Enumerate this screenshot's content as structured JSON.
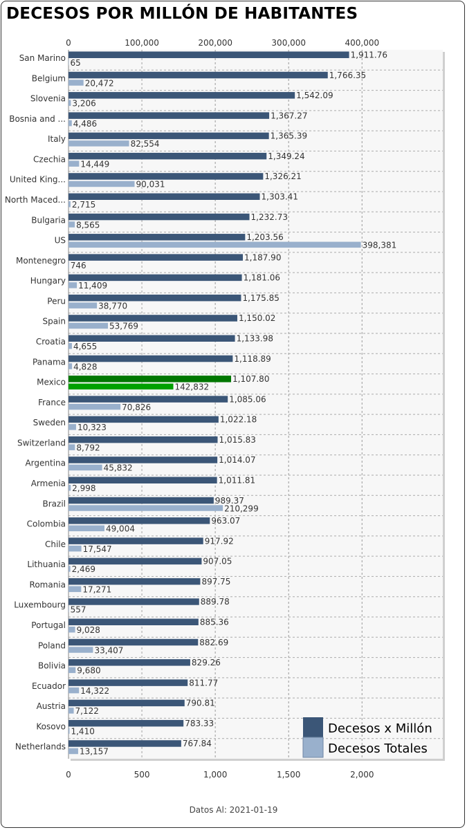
{
  "title": "DECESOS POR MILLÓN DE HABITANTES",
  "footer": "Datos Al: 2021-01-19",
  "colors": {
    "per_million": "#3b5677",
    "totals": "#99b0cc",
    "highlight_per_million": "#007700",
    "highlight_totals": "#00a000",
    "plot_background": "#f7f7f7",
    "grid": "#aaaaaa"
  },
  "chart_data": {
    "type": "bar",
    "orientation": "horizontal",
    "highlight_category": "Mexico",
    "categories": [
      "San Marino",
      "Belgium",
      "Slovenia",
      "Bosnia and ...",
      "Italy",
      "Czechia",
      "United King...",
      "North Maced...",
      "Bulgaria",
      "US",
      "Montenegro",
      "Hungary",
      "Peru",
      "Spain",
      "Croatia",
      "Panama",
      "Mexico",
      "France",
      "Sweden",
      "Switzerland",
      "Argentina",
      "Armenia",
      "Brazil",
      "Colombia",
      "Chile",
      "Lithuania",
      "Romania",
      "Luxembourg",
      "Portugal",
      "Poland",
      "Bolivia",
      "Ecuador",
      "Austria",
      "Kosovo",
      "Netherlands"
    ],
    "series": [
      {
        "name": "Decesos x Millón",
        "axis": "bottom",
        "values": [
          1911.76,
          1766.35,
          1542.09,
          1367.27,
          1365.39,
          1349.24,
          1326.21,
          1303.41,
          1232.73,
          1203.56,
          1187.9,
          1181.06,
          1175.85,
          1150.02,
          1133.98,
          1118.89,
          1107.8,
          1085.06,
          1022.18,
          1015.83,
          1014.07,
          1011.81,
          989.37,
          963.07,
          917.92,
          907.05,
          897.75,
          889.78,
          885.36,
          882.69,
          829.26,
          811.77,
          790.81,
          783.33,
          767.84
        ],
        "labels": [
          "1,911.76",
          "1,766.35",
          "1,542.09",
          "1,367.27",
          "1,365.39",
          "1,349.24",
          "1,326.21",
          "1,303.41",
          "1,232.73",
          "1,203.56",
          "1,187.90",
          "1,181.06",
          "1,175.85",
          "1,150.02",
          "1,133.98",
          "1,118.89",
          "1,107.80",
          "1,085.06",
          "1,022.18",
          "1,015.83",
          "1,014.07",
          "1,011.81",
          "989.37",
          "963.07",
          "917.92",
          "907.05",
          "897.75",
          "889.78",
          "885.36",
          "882.69",
          "829.26",
          "811.77",
          "790.81",
          "783.33",
          "767.84"
        ]
      },
      {
        "name": "Decesos Totales",
        "axis": "top",
        "values": [
          65,
          20472,
          3206,
          4486,
          82554,
          14449,
          90031,
          2715,
          8565,
          398381,
          746,
          11409,
          38770,
          53769,
          4655,
          4828,
          142832,
          70826,
          10323,
          8792,
          45832,
          2998,
          210299,
          49004,
          17547,
          2469,
          17271,
          557,
          9028,
          33407,
          9680,
          14322,
          7122,
          1410,
          13157
        ],
        "labels": [
          "65",
          "20,472",
          "3,206",
          "4,486",
          "82,554",
          "14,449",
          "90,031",
          "2,715",
          "8,565",
          "398,381",
          "746",
          "11,409",
          "38,770",
          "53,769",
          "4,655",
          "4,828",
          "142,832",
          "70,826",
          "10,323",
          "8,792",
          "45,832",
          "2,998",
          "210,299",
          "49,004",
          "17,547",
          "2,469",
          "17,271",
          "557",
          "9,028",
          "33,407",
          "9,680",
          "14,322",
          "7,122",
          "1,410",
          "13,157"
        ]
      }
    ],
    "bottom_axis": {
      "range": [
        0,
        2550
      ],
      "ticks": [
        0,
        500,
        1000,
        1500,
        2000
      ],
      "tick_labels": [
        "0",
        "500",
        "1,000",
        "1,500",
        "2,000"
      ]
    },
    "top_axis": {
      "range": [
        0,
        510000
      ],
      "ticks": [
        0,
        100000,
        200000,
        300000,
        400000
      ],
      "tick_labels": [
        "0",
        "100,000",
        "200,000",
        "300,000",
        "400,000"
      ]
    },
    "grid": true,
    "legend_position": "bottom-right"
  }
}
